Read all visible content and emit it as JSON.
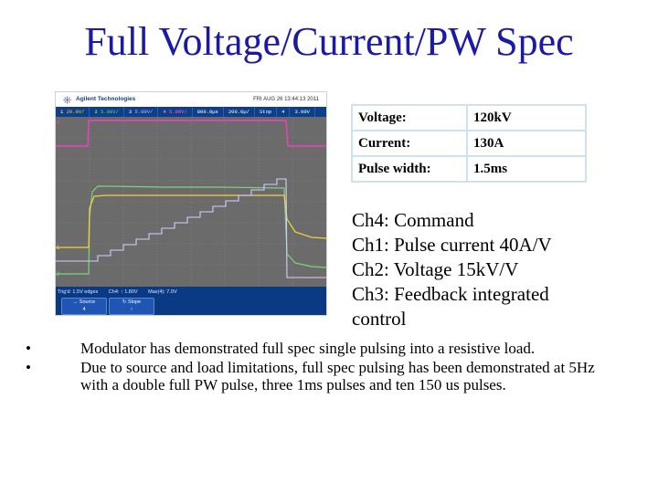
{
  "title": "Full Voltage/Current/PW Spec",
  "scope": {
    "brand": "Agilent Technologies",
    "timestamp": "FRI AUG 26 13:44:13 2011",
    "toolbar": [
      "1",
      "20.0V/",
      "2",
      "5.00V/",
      "3",
      "5.00V/",
      "4",
      "5.00V/",
      "800.0µs",
      "200.0µ/",
      "Stop",
      "4",
      "3.00V"
    ],
    "trigger_bar": [
      "Trig'd: 1.5V edges",
      "Ch4: ↑ 1.80V",
      "Max(4): 7.0V"
    ],
    "softkeys": [
      {
        "icon": "→",
        "label": "Source",
        "value": "4"
      },
      {
        "icon": "↻",
        "label": "Slope",
        "value": "↑"
      }
    ],
    "colors": {
      "ch1": "#f2d23a",
      "ch2": "#7ed37e",
      "ch3": "#d8ccff",
      "ch4": "#ee3fc4",
      "grid": "#8a8a8a",
      "screen": "#6b6b6b"
    }
  },
  "spec": [
    {
      "label": "Voltage:",
      "value": "120kV"
    },
    {
      "label": "Current:",
      "value": "130A"
    },
    {
      "label": "Pulse width:",
      "value": "1.5ms"
    }
  ],
  "channels": [
    "Ch4: Command",
    "Ch1: Pulse current 40A/V",
    "Ch2: Voltage 15kV/V",
    "Ch3: Feedback integrated",
    "control"
  ],
  "bullets": [
    "Modulator has demonstrated full spec single pulsing into a resistive load.",
    "Due to source and load limitations, full spec pulsing has been demonstrated at 5Hz with a double full PW pulse, three 1ms pulses and ten 150 us pulses."
  ],
  "bullet_symbol": "•"
}
